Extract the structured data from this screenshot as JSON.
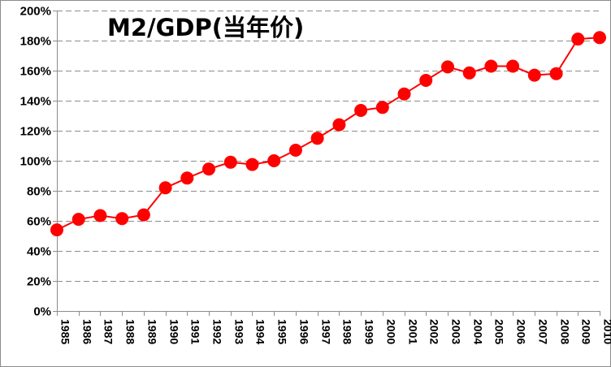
{
  "chart_data": {
    "type": "line",
    "title": "M2/GDP(当年价)",
    "xlabel": "",
    "ylabel": "",
    "ylim": [
      0,
      200
    ],
    "y_tick_values": [
      0,
      20,
      40,
      60,
      80,
      100,
      120,
      140,
      160,
      180,
      200
    ],
    "y_tick_labels": [
      "0%",
      "20%",
      "40%",
      "60%",
      "80%",
      "100%",
      "120%",
      "140%",
      "160%",
      "180%",
      "200%"
    ],
    "categories": [
      "1985",
      "1986",
      "1987",
      "1988",
      "1989",
      "1990",
      "1991",
      "1992",
      "1993",
      "1994",
      "1995",
      "1996",
      "1997",
      "1998",
      "1999",
      "2000",
      "2001",
      "2002",
      "2003",
      "2004",
      "2005",
      "2006",
      "2007",
      "2008",
      "2009",
      "2010"
    ],
    "series": [
      {
        "name": "M2/GDP",
        "values": [
          54,
          61,
          63.5,
          61.5,
          64,
          82,
          88.5,
          94.5,
          99,
          97.5,
          100,
          107,
          115,
          124,
          133.5,
          135.5,
          144.5,
          153.5,
          162.5,
          158.5,
          163,
          163,
          157,
          158,
          181,
          182
        ],
        "color": "#ff0000"
      }
    ],
    "grid": true,
    "legend": "none"
  }
}
